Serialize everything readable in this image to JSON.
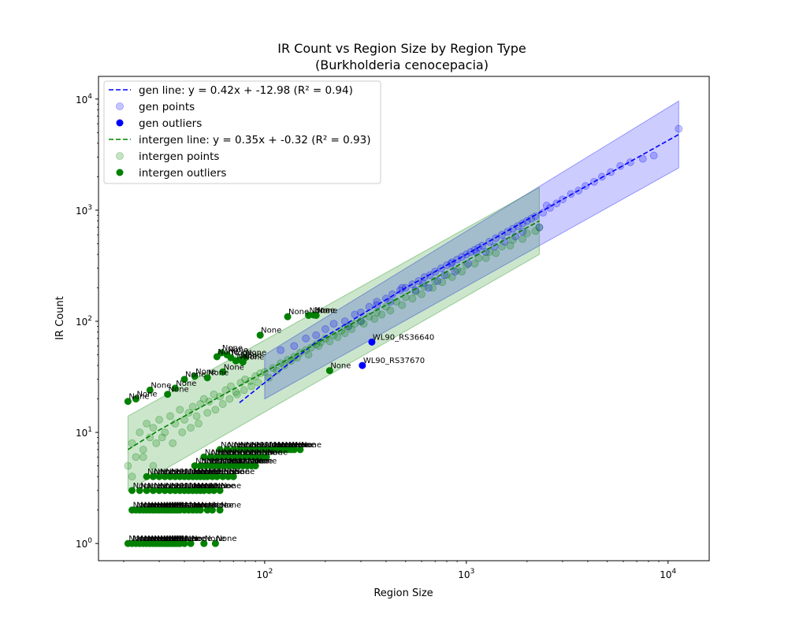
{
  "chart_data": {
    "type": "scatter",
    "title": "IR Count vs Region Size by Region Type",
    "subtitle": "(Burkholderia cenocepacia)",
    "xlabel": "Region Size",
    "ylabel": "IR Count",
    "xscale": "log",
    "yscale": "log",
    "xlim": [
      15,
      16000
    ],
    "ylim": [
      0.7,
      16000
    ],
    "x_ticks": [
      {
        "value": 100,
        "base": "10",
        "exp": "2"
      },
      {
        "value": 1000,
        "base": "10",
        "exp": "3"
      },
      {
        "value": 10000,
        "base": "10",
        "exp": "4"
      }
    ],
    "y_ticks": [
      {
        "value": 1,
        "base": "10",
        "exp": "0"
      },
      {
        "value": 10,
        "base": "10",
        "exp": "1"
      },
      {
        "value": 100,
        "base": "10",
        "exp": "2"
      },
      {
        "value": 1000,
        "base": "10",
        "exp": "3"
      },
      {
        "value": 10000,
        "base": "10",
        "exp": "4"
      }
    ],
    "grid": false,
    "legend_position": "top-left",
    "legend": [
      {
        "label": "gen line: y = 0.42x + -12.98 (R² = 0.94)",
        "marker": "dashed-line",
        "color": "#0000ff"
      },
      {
        "label": "gen points",
        "marker": "circle-light",
        "color": "#0000ff"
      },
      {
        "label": "gen outliers",
        "marker": "circle",
        "color": "#0000ff"
      },
      {
        "label": "intergen line: y = 0.35x + -0.32 (R² = 0.93)",
        "marker": "dashed-line",
        "color": "#008000"
      },
      {
        "label": "intergen points",
        "marker": "circle-light",
        "color": "#008000"
      },
      {
        "label": "intergen outliers",
        "marker": "circle",
        "color": "#008000"
      }
    ],
    "series": [
      {
        "name": "gen line",
        "kind": "fit",
        "color": "#0000ff",
        "x": [
          75,
          100,
          180,
          500,
          1000,
          3000,
          11300
        ],
        "y": [
          18.5,
          28,
          65,
          200,
          400,
          1250,
          4800
        ]
      },
      {
        "name": "intergen line",
        "kind": "fit",
        "color": "#008000",
        "x": [
          21,
          30,
          50,
          100,
          300,
          1000,
          2300
        ],
        "y": [
          7,
          10.5,
          17.5,
          35,
          105,
          350,
          800
        ]
      },
      {
        "name": "gen points",
        "kind": "points",
        "color": "#0000ff",
        "x": [
          120,
          140,
          160,
          180,
          200,
          220,
          250,
          280,
          300,
          330,
          360,
          400,
          430,
          470,
          500,
          540,
          580,
          620,
          660,
          700,
          750,
          800,
          850,
          900,
          950,
          1000,
          1050,
          1100,
          1150,
          1200,
          1300,
          1400,
          1500,
          1600,
          1700,
          1800,
          1900,
          2000,
          2100,
          2200,
          2400,
          2600,
          2800,
          3000,
          3300,
          3600,
          3900,
          4300,
          4700,
          5200,
          5800,
          6500,
          7500,
          8500,
          11300,
          650,
          720,
          880,
          1250,
          1750,
          2300,
          2500,
          300,
          420,
          560,
          780,
          1020,
          1380,
          1900,
          260,
          360,
          480,
          610,
          840,
          1120,
          1550
        ],
        "y": [
          55,
          60,
          70,
          75,
          85,
          95,
          100,
          115,
          120,
          135,
          150,
          160,
          175,
          190,
          200,
          215,
          230,
          250,
          260,
          280,
          300,
          320,
          340,
          360,
          380,
          400,
          420,
          440,
          460,
          480,
          520,
          560,
          600,
          640,
          680,
          720,
          760,
          800,
          840,
          880,
          950,
          1050,
          1150,
          1250,
          1400,
          1500,
          1650,
          1800,
          2000,
          2200,
          2500,
          2700,
          2900,
          3100,
          5400,
          200,
          230,
          280,
          420,
          580,
          700,
          1100,
          100,
          150,
          190,
          260,
          330,
          470,
          640,
          90,
          140,
          200,
          220,
          330,
          420,
          520
        ]
      },
      {
        "name": "intergen points",
        "kind": "points",
        "color": "#008000",
        "x": [
          21,
          22,
          23,
          24,
          25,
          26,
          27,
          28,
          29,
          30,
          32,
          34,
          36,
          38,
          40,
          42,
          44,
          46,
          48,
          50,
          53,
          56,
          60,
          64,
          68,
          72,
          76,
          80,
          85,
          90,
          95,
          100,
          110,
          120,
          130,
          140,
          150,
          160,
          170,
          180,
          190,
          200,
          220,
          240,
          260,
          280,
          300,
          330,
          360,
          400,
          450,
          500,
          560,
          620,
          700,
          800,
          900,
          1000,
          1150,
          1300,
          1500,
          1700,
          2000,
          2300,
          22,
          25,
          28,
          31,
          35,
          39,
          43,
          47,
          52,
          57,
          62,
          67,
          73,
          79,
          86,
          93,
          105,
          115,
          125,
          135,
          145,
          165,
          185,
          210,
          230,
          250,
          270,
          310,
          350,
          380,
          420,
          480,
          540,
          600,
          680,
          760,
          850,
          950,
          1100,
          1250,
          1400,
          1650,
          1900,
          2200
        ],
        "y": [
          5,
          8,
          6,
          10,
          7,
          12,
          9,
          11,
          8,
          13,
          10,
          14,
          12,
          16,
          13,
          15,
          17,
          14,
          18,
          20,
          19,
          22,
          21,
          24,
          26,
          23,
          28,
          30,
          29,
          32,
          34,
          35,
          38,
          42,
          45,
          48,
          52,
          55,
          58,
          62,
          65,
          70,
          75,
          82,
          90,
          95,
          100,
          110,
          120,
          135,
          150,
          165,
          185,
          205,
          230,
          260,
          290,
          320,
          370,
          420,
          470,
          540,
          620,
          700,
          4,
          6,
          5,
          9,
          8,
          10,
          11,
          12,
          15,
          16,
          18,
          20,
          22,
          24,
          26,
          28,
          31,
          36,
          40,
          44,
          47,
          50,
          60,
          66,
          72,
          78,
          85,
          95,
          105,
          115,
          125,
          140,
          160,
          175,
          200,
          225,
          250,
          280,
          330,
          370,
          410,
          480,
          550,
          650
        ]
      },
      {
        "name": "gen outliers",
        "kind": "outliers",
        "color": "#0000ff",
        "x": [
          340,
          305
        ],
        "y": [
          65,
          40
        ],
        "labels": [
          "WL90_RS36640",
          "WL90_RS37670"
        ]
      },
      {
        "name": "intergen outliers",
        "kind": "outliers",
        "color": "#008000",
        "x": [
          21,
          22,
          23,
          24,
          25,
          26,
          27,
          28,
          29,
          30,
          31,
          32,
          33,
          34,
          35,
          36,
          37,
          38,
          40,
          43,
          50,
          57,
          22,
          23,
          24,
          25,
          26,
          27,
          28,
          29,
          30,
          31,
          32,
          33,
          34,
          35,
          36,
          37,
          38,
          40,
          42,
          44,
          46,
          48,
          52,
          55,
          60,
          22,
          24,
          26,
          28,
          30,
          32,
          34,
          36,
          38,
          40,
          42,
          44,
          46,
          48,
          50,
          53,
          56,
          60,
          26,
          28,
          30,
          32,
          34,
          36,
          38,
          40,
          42,
          44,
          46,
          48,
          50,
          52,
          55,
          58,
          62,
          66,
          70,
          45,
          48,
          51,
          54,
          57,
          60,
          63,
          66,
          70,
          74,
          78,
          82,
          86,
          90,
          50,
          54,
          58,
          62,
          66,
          70,
          75,
          80,
          85,
          90,
          96,
          102,
          60,
          65,
          70,
          75,
          80,
          85,
          90,
          95,
          100,
          105,
          110,
          115,
          120,
          125,
          130,
          135,
          140,
          150,
          21,
          23,
          27,
          33,
          36,
          40,
          45,
          52,
          62,
          78,
          58,
          61,
          65,
          68,
          72,
          76,
          80,
          95,
          130,
          165,
          175,
          180,
          210
        ],
        "y": [
          1,
          1,
          1,
          1,
          1,
          1,
          1,
          1,
          1,
          1,
          1,
          1,
          1,
          1,
          1,
          1,
          1,
          1,
          1,
          1,
          1,
          1,
          2,
          2,
          2,
          2,
          2,
          2,
          2,
          2,
          2,
          2,
          2,
          2,
          2,
          2,
          2,
          2,
          2,
          2,
          2,
          2,
          2,
          2,
          2,
          2,
          2,
          3,
          3,
          3,
          3,
          3,
          3,
          3,
          3,
          3,
          3,
          3,
          3,
          3,
          3,
          3,
          3,
          3,
          3,
          4,
          4,
          4,
          4,
          4,
          4,
          4,
          4,
          4,
          4,
          4,
          4,
          4,
          4,
          4,
          4,
          4,
          4,
          4,
          5,
          5,
          5,
          5,
          5,
          5,
          5,
          5,
          5,
          5,
          5,
          5,
          5,
          5,
          6,
          6,
          6,
          6,
          6,
          6,
          6,
          6,
          6,
          6,
          6,
          6,
          7,
          7,
          7,
          7,
          7,
          7,
          7,
          7,
          7,
          7,
          7,
          7,
          7,
          7,
          7,
          7,
          7,
          7,
          19,
          20,
          24,
          22,
          25,
          30,
          32,
          31,
          35,
          43,
          48,
          52,
          50,
          47,
          44,
          45,
          47,
          75,
          110,
          113,
          114,
          113,
          36
        ],
        "labels": [
          "None",
          "None",
          "None",
          "None",
          "None",
          "None",
          "None",
          "None",
          "None",
          "None",
          "None",
          "None",
          "None",
          "None",
          "None",
          "None",
          "None",
          "None",
          "None",
          "None",
          "None",
          "None",
          "None",
          "None",
          "None",
          "None",
          "None",
          "None",
          "None",
          "None",
          "None",
          "None",
          "None",
          "None",
          "None",
          "None",
          "None",
          "None",
          "None",
          "None",
          "None",
          "None",
          "None",
          "None",
          "None",
          "None",
          "None",
          "None",
          "None",
          "None",
          "None",
          "None",
          "None",
          "None",
          "None",
          "None",
          "None",
          "None",
          "None",
          "None",
          "None",
          "None",
          "None",
          "None",
          "None",
          "None",
          "None",
          "None",
          "None",
          "None",
          "None",
          "None",
          "None",
          "None",
          "None",
          "None",
          "None",
          "None",
          "None",
          "None",
          "None",
          "None",
          "None",
          "None",
          "None",
          "None",
          "None",
          "None",
          "None",
          "None",
          "None",
          "None",
          "None",
          "None",
          "None",
          "None",
          "None",
          "None",
          "None",
          "None",
          "None",
          "None",
          "None",
          "None",
          "None",
          "None",
          "None",
          "None",
          "None",
          "None",
          "None",
          "None",
          "None",
          "None",
          "None",
          "None",
          "None",
          "None",
          "None",
          "None",
          "None",
          "None",
          "None",
          "None",
          "None",
          "None",
          "None",
          "None",
          "None",
          "None",
          "None",
          "None",
          "None",
          "None",
          "None",
          "None",
          "None",
          "None",
          "None",
          "None",
          "None",
          "None",
          "None",
          "None",
          "None",
          "None",
          "None",
          "None",
          "None",
          "None",
          "None",
          "None",
          "None",
          "None",
          "None",
          "None"
        ]
      },
      {
        "name": "gen band",
        "kind": "band",
        "color": "#0000ff",
        "x": [
          100,
          11300
        ],
        "lower": [
          20,
          2400
        ],
        "upper": [
          50,
          9600
        ]
      },
      {
        "name": "intergen band",
        "kind": "band",
        "color": "#008000",
        "x": [
          21,
          2300
        ],
        "lower": [
          3,
          400
        ],
        "upper": [
          14,
          1600
        ]
      }
    ]
  }
}
